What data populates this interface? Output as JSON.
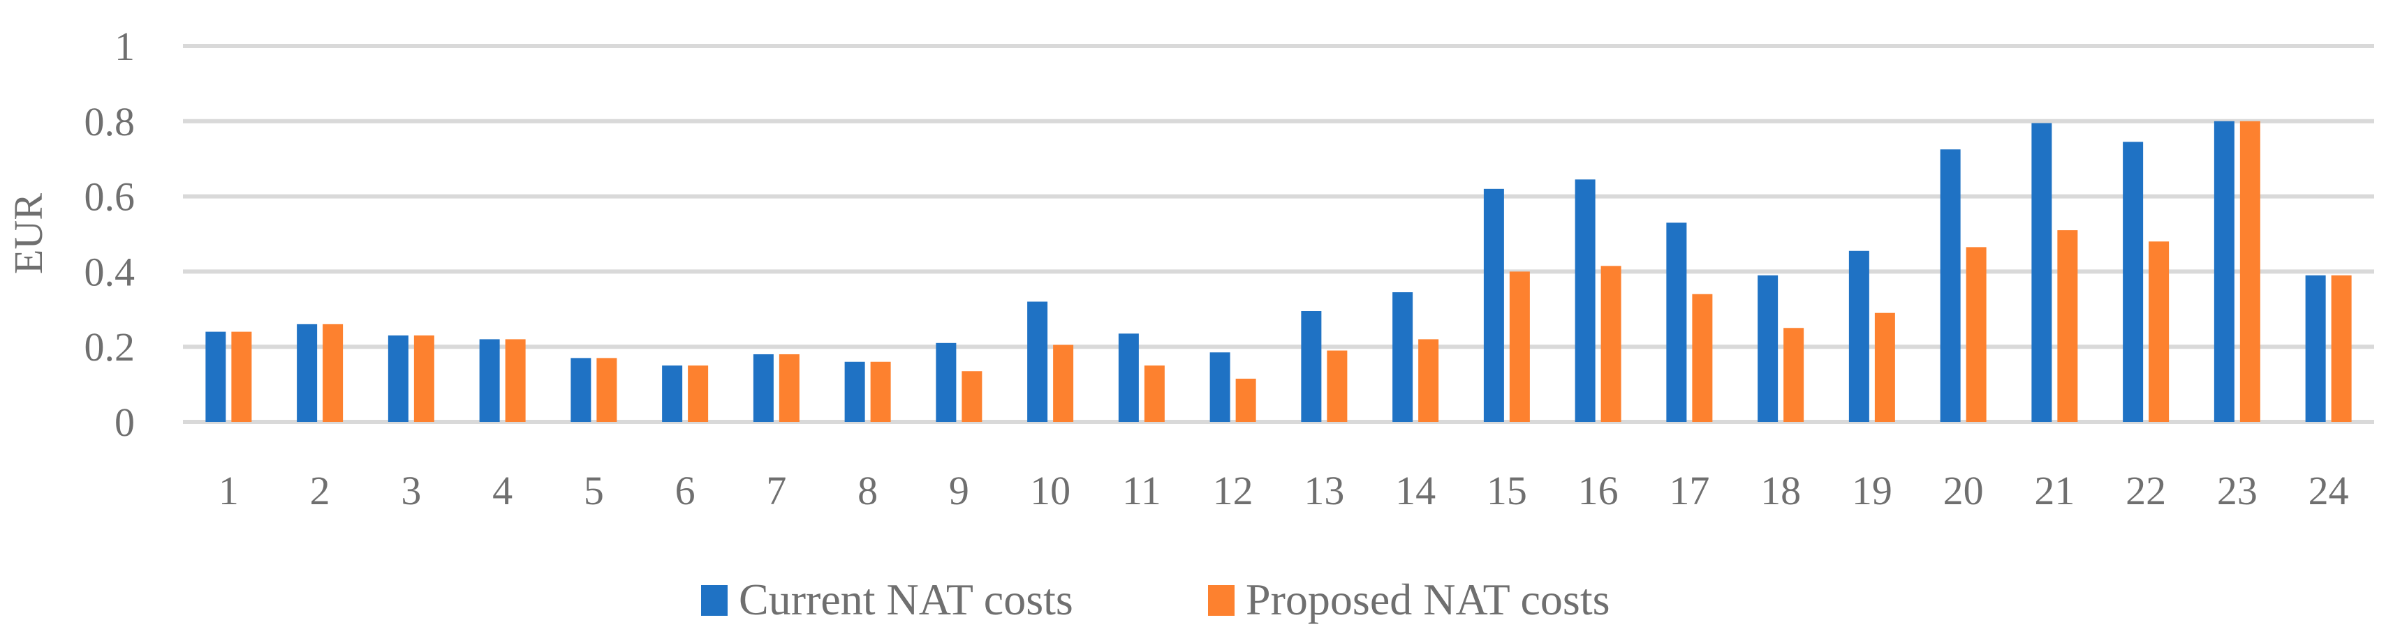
{
  "chart_data": {
    "type": "bar",
    "title": "",
    "xlabel": "",
    "ylabel": "EUR",
    "ylim": [
      0,
      1
    ],
    "yticks": [
      0,
      0.2,
      0.4,
      0.6,
      0.8,
      1
    ],
    "ytick_labels": [
      "0",
      "0.2",
      "0.4",
      "0.6",
      "0.8",
      "1"
    ],
    "grid": true,
    "legend_position": "bottom-center",
    "categories": [
      "1",
      "2",
      "3",
      "4",
      "5",
      "6",
      "7",
      "8",
      "9",
      "10",
      "11",
      "12",
      "13",
      "14",
      "15",
      "16",
      "17",
      "18",
      "19",
      "20",
      "21",
      "22",
      "23",
      "24"
    ],
    "series": [
      {
        "name": "Current NAT costs",
        "color": "#1f72c4",
        "values": [
          0.24,
          0.26,
          0.23,
          0.22,
          0.17,
          0.15,
          0.18,
          0.16,
          0.21,
          0.32,
          0.235,
          0.185,
          0.295,
          0.345,
          0.62,
          0.645,
          0.53,
          0.39,
          0.455,
          0.725,
          0.795,
          0.745,
          0.8,
          0.39
        ]
      },
      {
        "name": "Proposed NAT costs",
        "color": "#fd812f",
        "values": [
          0.24,
          0.26,
          0.23,
          0.22,
          0.17,
          0.15,
          0.18,
          0.16,
          0.135,
          0.205,
          0.15,
          0.115,
          0.19,
          0.22,
          0.4,
          0.415,
          0.34,
          0.25,
          0.29,
          0.465,
          0.51,
          0.48,
          0.8,
          0.39
        ]
      }
    ]
  }
}
